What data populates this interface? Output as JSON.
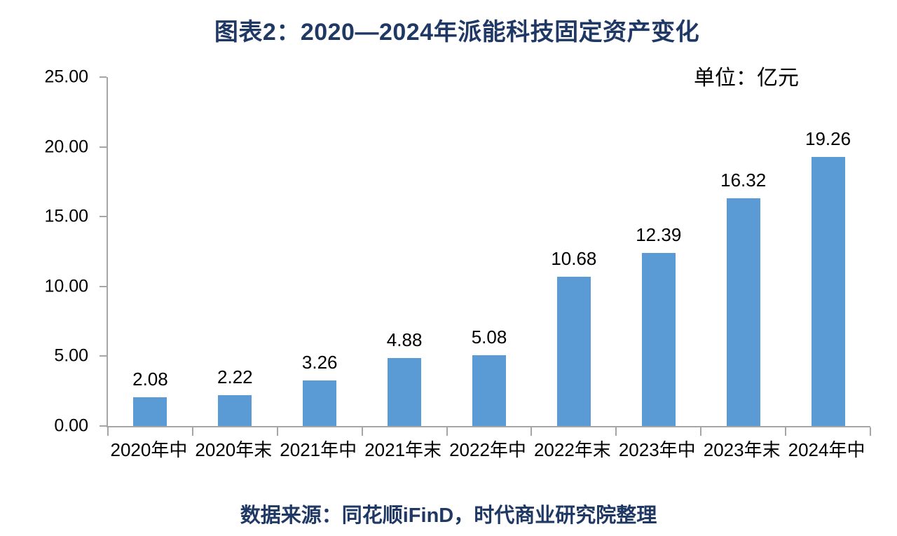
{
  "title": "图表2：2020—2024年派能科技固定资产变化",
  "unit_label": "单位：亿元",
  "source_note": "数据来源：同花顺iFinD，时代商业研究院整理",
  "colors": {
    "bar": "#5B9BD5",
    "title_text": "#1F3864",
    "source_text": "#1F3864",
    "axis": "#A6A6A6",
    "label_text": "#000000"
  },
  "chart_data": {
    "type": "bar",
    "title": "图表2：2020—2024年派能科技固定资产变化",
    "unit": "亿元",
    "categories": [
      "2020年中",
      "2020年末",
      "2021年中",
      "2021年末",
      "2022年中",
      "2022年末",
      "2023年中",
      "2023年末",
      "2024年中"
    ],
    "values": [
      2.08,
      2.22,
      3.26,
      4.88,
      5.08,
      10.68,
      12.39,
      16.32,
      19.26
    ],
    "value_labels": [
      "2.08",
      "2.22",
      "3.26",
      "4.88",
      "5.08",
      "10.68",
      "12.39",
      "16.32",
      "19.26"
    ],
    "y_tick_labels": [
      "0.00",
      "5.00",
      "10.00",
      "15.00",
      "20.00",
      "25.00"
    ],
    "y_tick_values": [
      0,
      5,
      10,
      15,
      20,
      25
    ],
    "ylim": [
      0,
      25
    ],
    "xlabel": "",
    "ylabel": "",
    "grid": false,
    "legend": "none",
    "data_labels_position": "above bars"
  }
}
